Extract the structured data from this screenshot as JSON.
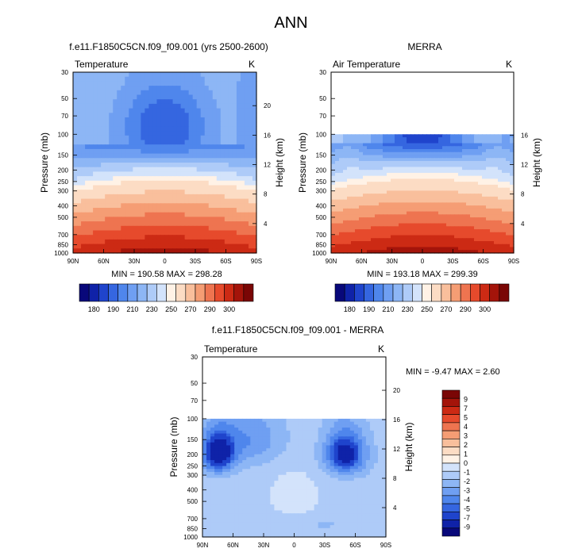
{
  "main_title": "ANN",
  "colors": {
    "temperature_levels": [
      "#08087a",
      "#0f22a8",
      "#1f44cc",
      "#3566e0",
      "#4f86ec",
      "#6f9ff2",
      "#8db6f5",
      "#aecbf8",
      "#d3e3fb",
      "#fff2e6",
      "#fcdcc4",
      "#f9bf9c",
      "#f59d74",
      "#ee7450",
      "#e64a2c",
      "#cc2a14",
      "#a4140a",
      "#7a0605"
    ],
    "difference_levels": [
      "#08087a",
      "#0f22a8",
      "#1f44cc",
      "#3566e0",
      "#4f86ec",
      "#6f9ff2",
      "#8db6f5",
      "#aecbf8",
      "#d3e3fb",
      "#fff2e6",
      "#fcdcc4",
      "#f9bf9c",
      "#f59d74",
      "#ee7450",
      "#e64a2c",
      "#cc2a14",
      "#a4140a",
      "#7a0605"
    ]
  },
  "chart_data": [
    {
      "type": "heatmap",
      "title": "f.e11.F1850C5CN.f09_f09.001 (yrs 2500-2600)",
      "left_label": "Temperature",
      "units": "K",
      "ylabel": "Pressure (mb)",
      "right_ylabel": "Height (km)",
      "x_ticks": [
        "90N",
        "60N",
        "30N",
        "0",
        "30S",
        "60S",
        "90S"
      ],
      "x_range": [
        90,
        -90
      ],
      "pressure_ticks": [
        "30",
        "50",
        "70",
        "100",
        "150",
        "200",
        "250",
        "300",
        "400",
        "500",
        "700",
        "850",
        "1000"
      ],
      "pressure_values": [
        30,
        50,
        70,
        100,
        150,
        200,
        250,
        300,
        400,
        500,
        700,
        850,
        1000
      ],
      "height_ticks": [
        "4",
        "8",
        "12",
        "16",
        "20"
      ],
      "height_values": [
        4,
        8,
        12,
        16,
        20
      ],
      "data_top": 30,
      "min": 190.58,
      "max": 298.28,
      "stats_text": "MIN = 190.58   MAX = 298.28",
      "colorbar_labels": [
        "180",
        "190",
        "210",
        "230",
        "250",
        "270",
        "290",
        "300"
      ]
    },
    {
      "type": "heatmap",
      "title": "MERRA",
      "left_label": "Air Temperature",
      "units": "K",
      "ylabel": "Pressure (mb)",
      "right_ylabel": "Height (km)",
      "x_ticks": [
        "90N",
        "60N",
        "30N",
        "0",
        "30S",
        "60S",
        "90S"
      ],
      "x_range": [
        90,
        -90
      ],
      "pressure_ticks": [
        "30",
        "50",
        "70",
        "100",
        "150",
        "200",
        "250",
        "300",
        "400",
        "500",
        "700",
        "850",
        "1000"
      ],
      "pressure_values": [
        30,
        50,
        70,
        100,
        150,
        200,
        250,
        300,
        400,
        500,
        700,
        850,
        1000
      ],
      "height_ticks": [
        "4",
        "8",
        "12",
        "16"
      ],
      "height_values": [
        4,
        8,
        12,
        16
      ],
      "data_top": 100,
      "min": 193.18,
      "max": 299.39,
      "stats_text": "MIN = 193.18   MAX = 299.39",
      "colorbar_labels": [
        "180",
        "190",
        "210",
        "230",
        "250",
        "270",
        "290",
        "300"
      ]
    },
    {
      "type": "heatmap",
      "title": "f.e11.F1850C5CN.f09_f09.001 - MERRA",
      "left_label": "Temperature",
      "units": "K",
      "ylabel": "Pressure (mb)",
      "right_ylabel": "Height (km)",
      "x_ticks": [
        "90N",
        "60N",
        "30N",
        "0",
        "30S",
        "60S",
        "90S"
      ],
      "x_range": [
        90,
        -90
      ],
      "pressure_ticks": [
        "30",
        "50",
        "70",
        "100",
        "150",
        "200",
        "250",
        "300",
        "400",
        "500",
        "700",
        "850",
        "1000"
      ],
      "pressure_values": [
        30,
        50,
        70,
        100,
        150,
        200,
        250,
        300,
        400,
        500,
        700,
        850,
        1000
      ],
      "height_ticks": [
        "4",
        "8",
        "12",
        "16",
        "20"
      ],
      "height_values": [
        4,
        8,
        12,
        16,
        20
      ],
      "data_top": 100,
      "min": -9.47,
      "max": 2.6,
      "stats_text": "MIN =  -9.47   MAX =   2.60",
      "colorbar_labels": [
        "9",
        "7",
        "5",
        "4",
        "3",
        "2",
        "1",
        "0",
        "-1",
        "-2",
        "-3",
        "-4",
        "-5",
        "-7",
        "-9"
      ]
    }
  ]
}
